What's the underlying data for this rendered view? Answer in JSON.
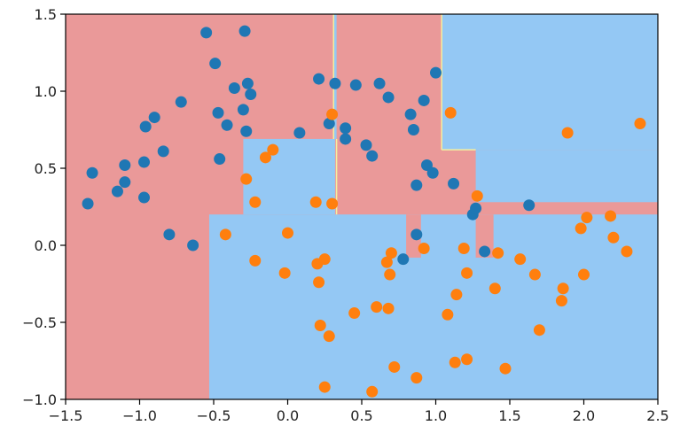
{
  "chart_data": {
    "type": "scatter",
    "title": "",
    "xlabel": "",
    "ylabel": "",
    "xlim": [
      -1.5,
      2.5
    ],
    "ylim": [
      -1.0,
      1.5
    ],
    "x_ticks": [
      "−1.5",
      "−1.0",
      "−0.5",
      "0.0",
      "0.5",
      "1.0",
      "1.5",
      "2.0",
      "2.5"
    ],
    "y_ticks": [
      "−1.0",
      "−0.5",
      "0.0",
      "0.5",
      "1.0",
      "1.5"
    ],
    "x_tick_values": [
      -1.5,
      -1.0,
      -0.5,
      0.0,
      0.5,
      1.0,
      1.5,
      2.0,
      2.5
    ],
    "y_tick_values": [
      -1.0,
      -0.5,
      0.0,
      0.5,
      1.0,
      1.5
    ],
    "grid": false,
    "background": {
      "base_color": "#ea9999",
      "class1_color": "#94c8f4",
      "boundary_color": "#f3f0a0",
      "class1_regions": [
        {
          "x0": -0.53,
          "x1": 2.5,
          "y0": -1.0,
          "y1": 0.2
        },
        {
          "x0": -0.3,
          "x1": 0.32,
          "y0": 0.2,
          "y1": 0.69
        },
        {
          "x0": 0.31,
          "x1": 0.33,
          "y0": 0.69,
          "y1": 1.5
        },
        {
          "x0": 1.04,
          "x1": 2.5,
          "y0": 0.62,
          "y1": 1.5
        },
        {
          "x0": 1.27,
          "x1": 2.5,
          "y0": 0.28,
          "y1": 0.62
        }
      ],
      "class0_regions": [
        {
          "x0": 0.8,
          "x1": 0.9,
          "y0": -0.08,
          "y1": 0.2
        },
        {
          "x0": 1.27,
          "x1": 1.39,
          "y0": -0.08,
          "y1": 0.2
        }
      ]
    },
    "series": [
      {
        "color": "#1f77b4",
        "x": [
          -1.35,
          -1.32,
          -1.15,
          -1.1,
          -1.1,
          -0.97,
          -0.97,
          -0.9,
          -0.84,
          -0.96,
          -0.8,
          -0.72,
          -0.64,
          -0.55,
          -0.49,
          -0.47,
          -0.46,
          -0.41,
          -0.36,
          -0.29,
          -0.3,
          -0.27,
          -0.25,
          -0.28,
          0.08,
          0.21,
          0.28,
          0.32,
          0.39,
          0.39,
          0.46,
          0.62,
          0.68,
          0.53,
          0.57,
          0.83,
          0.85,
          0.87,
          0.92,
          0.94,
          0.98,
          1.0,
          1.12,
          1.25,
          1.27,
          1.33,
          1.63,
          0.87,
          0.78
        ],
        "y": [
          0.27,
          0.47,
          0.35,
          0.41,
          0.52,
          0.31,
          0.54,
          0.83,
          0.61,
          0.77,
          0.07,
          0.93,
          0.0,
          1.38,
          1.18,
          0.86,
          0.56,
          0.78,
          1.02,
          1.39,
          0.88,
          1.05,
          0.98,
          0.74,
          0.73,
          1.08,
          0.79,
          1.05,
          0.69,
          0.76,
          1.04,
          1.05,
          0.96,
          0.65,
          0.58,
          0.85,
          0.75,
          0.39,
          0.94,
          0.52,
          0.47,
          1.12,
          0.4,
          0.2,
          0.24,
          -0.04,
          0.26,
          0.07,
          -0.09
        ]
      },
      {
        "color": "#ff7f0e",
        "x": [
          -0.28,
          -0.22,
          -0.15,
          -0.1,
          -0.42,
          -0.22,
          -0.02,
          0.0,
          0.19,
          0.2,
          0.25,
          0.21,
          0.3,
          0.3,
          0.28,
          0.22,
          0.25,
          0.45,
          0.6,
          0.68,
          0.57,
          0.67,
          0.69,
          0.7,
          0.72,
          0.92,
          0.87,
          1.08,
          1.1,
          1.13,
          1.14,
          1.19,
          1.21,
          1.21,
          1.28,
          1.4,
          1.42,
          1.47,
          1.57,
          1.67,
          1.7,
          1.85,
          1.86,
          1.98,
          2.0,
          2.02,
          2.18,
          2.2,
          2.29,
          2.38,
          1.89
        ],
        "y": [
          0.43,
          -0.1,
          0.57,
          0.62,
          0.07,
          0.28,
          -0.18,
          0.08,
          0.28,
          -0.12,
          -0.09,
          -0.24,
          0.85,
          0.27,
          -0.59,
          -0.52,
          -0.92,
          -0.44,
          -0.4,
          -0.41,
          -0.95,
          -0.11,
          -0.19,
          -0.05,
          -0.79,
          -0.02,
          -0.86,
          -0.45,
          0.86,
          -0.76,
          -0.32,
          -0.02,
          -0.74,
          -0.18,
          0.32,
          -0.28,
          -0.05,
          -0.8,
          -0.09,
          -0.19,
          -0.55,
          -0.36,
          -0.28,
          0.11,
          -0.19,
          0.18,
          0.19,
          0.05,
          -0.04,
          0.79,
          0.73
        ]
      }
    ]
  }
}
